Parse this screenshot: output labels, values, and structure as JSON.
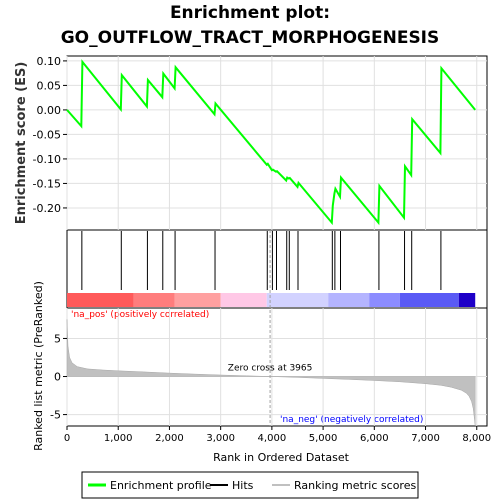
{
  "title_line1": "Enrichment plot:",
  "title_line2": "GO_OUTFLOW_TRACT_MORPHOGENESIS",
  "chart_data": [
    {
      "type": "line",
      "panel": "enrichment",
      "ylabel": "Enrichment score (ES)",
      "ylim": [
        -0.245,
        0.11
      ],
      "xlim": [
        0,
        8200
      ],
      "yticks": [
        0.1,
        0.05,
        0.0,
        -0.05,
        -0.1,
        -0.15,
        -0.2
      ],
      "ytick_labels": [
        "0.10",
        "0.05",
        "0.00",
        "-0.05",
        "-0.10",
        "-0.15",
        "-0.20"
      ],
      "grid": true,
      "color": "#00ff00",
      "series": [
        {
          "name": "Enrichment profile",
          "x": [
            0,
            280,
            300,
            1050,
            1070,
            1560,
            1580,
            1860,
            1880,
            2100,
            2120,
            2880,
            2900,
            3900,
            3920,
            4000,
            4020,
            4080,
            4100,
            4280,
            4300,
            4330,
            4350,
            4500,
            4520,
            5170,
            5190,
            5220,
            5240,
            5330,
            5350,
            6080,
            6100,
            6580,
            6600,
            6720,
            6740,
            7290,
            7310,
            7970
          ],
          "y": [
            0.0,
            -0.033,
            0.098,
            0.001,
            0.071,
            0.007,
            0.061,
            0.026,
            0.074,
            0.044,
            0.087,
            -0.009,
            0.013,
            -0.112,
            -0.11,
            -0.123,
            -0.122,
            -0.126,
            -0.125,
            -0.144,
            -0.138,
            -0.14,
            -0.139,
            -0.157,
            -0.149,
            -0.23,
            -0.195,
            -0.171,
            -0.161,
            -0.177,
            -0.138,
            -0.23,
            -0.155,
            -0.22,
            -0.115,
            -0.133,
            -0.019,
            -0.088,
            0.085,
            0.0
          ]
        }
      ]
    },
    {
      "type": "scatter",
      "panel": "hits",
      "series": [
        {
          "name": "Hits",
          "x": [
            290,
            1060,
            1570,
            1870,
            2110,
            2890,
            3910,
            4010,
            4090,
            4290,
            4340,
            4510,
            5180,
            5230,
            5340,
            6090,
            6590,
            6730,
            7300
          ]
        }
      ]
    },
    {
      "type": "heatmap",
      "panel": "ranking-bar",
      "xlim": [
        0,
        8200
      ],
      "segments": [
        {
          "x0": 0,
          "x1": 1300,
          "color": "#ff5a5a"
        },
        {
          "x0": 1300,
          "x1": 2100,
          "color": "#ff7d7d"
        },
        {
          "x0": 2100,
          "x1": 3000,
          "color": "#ffa0a0"
        },
        {
          "x0": 3000,
          "x1": 3900,
          "color": "#ffc8e6"
        },
        {
          "x0": 3900,
          "x1": 5100,
          "color": "#d2d2ff"
        },
        {
          "x0": 5100,
          "x1": 5900,
          "color": "#b4b4ff"
        },
        {
          "x0": 5900,
          "x1": 6500,
          "color": "#8c8cff"
        },
        {
          "x0": 6500,
          "x1": 7650,
          "color": "#5a5af5"
        },
        {
          "x0": 7650,
          "x1": 7970,
          "color": "#1e00c8"
        }
      ],
      "label_pos": "'na_pos' (positively correlated)",
      "label_neg": "'na_neg' (negatively correlated)",
      "pos_color": "#ff0000",
      "neg_color": "#0000ff"
    },
    {
      "type": "area",
      "panel": "ranked-metric",
      "ylabel": "Ranked list metric (PreRanked)",
      "xlabel": "Rank in Ordered Dataset",
      "ylim": [
        -6.5,
        9.0
      ],
      "xlim": [
        0,
        8200
      ],
      "yticks": [
        5,
        0,
        -5
      ],
      "ytick_labels": [
        "5",
        "0",
        "-5"
      ],
      "xticks": [
        0,
        1000,
        2000,
        3000,
        4000,
        5000,
        6000,
        7000,
        8000
      ],
      "xtick_labels": [
        "0",
        "1,000",
        "2,000",
        "3,000",
        "4,000",
        "5,000",
        "6,000",
        "7,000",
        "8,000"
      ],
      "zero_cross": 3965,
      "zero_cross_label": "Zero cross at 3965",
      "fill_color": "#c0c0c0",
      "series": [
        {
          "name": "Ranking metric scores",
          "x": [
            0,
            20,
            50,
            100,
            200,
            400,
            700,
            1000,
            1500,
            2000,
            2500,
            3000,
            3500,
            3965,
            4500,
            5000,
            5500,
            6000,
            6500,
            7000,
            7300,
            7500,
            7700,
            7800,
            7850,
            7900,
            7930,
            7950,
            7970
          ],
          "y": [
            7.5,
            4.0,
            2.5,
            1.8,
            1.3,
            1.0,
            0.85,
            0.75,
            0.6,
            0.45,
            0.32,
            0.2,
            0.1,
            0.0,
            -0.12,
            -0.25,
            -0.38,
            -0.52,
            -0.7,
            -0.95,
            -1.15,
            -1.4,
            -1.8,
            -2.2,
            -2.6,
            -3.3,
            -4.2,
            -5.3,
            -6.5
          ]
        }
      ]
    }
  ],
  "legend": {
    "items": [
      {
        "label": "Enrichment profile",
        "color": "#00ff00"
      },
      {
        "label": "Hits",
        "color": "#000000"
      },
      {
        "label": "Ranking metric scores",
        "color": "#c0c0c0"
      }
    ]
  }
}
